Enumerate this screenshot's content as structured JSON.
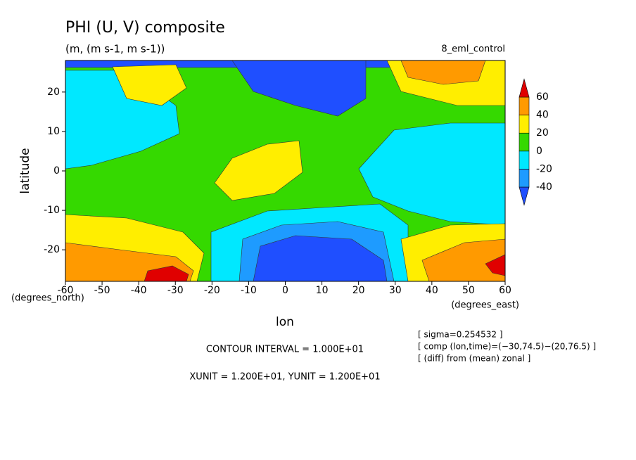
{
  "chart_data": {
    "type": "contour",
    "title": "PHI (U, V) composite",
    "subtitle": "(m, (m s-1, m s-1))",
    "dataset": "8_eml_control",
    "xlabel": "lon",
    "ylabel": "latitude",
    "xunits": "(degrees_east)",
    "yunits": "(degrees_north)",
    "xlim": [
      -60,
      60
    ],
    "ylim": [
      -28,
      28
    ],
    "xticks": [
      -60,
      -50,
      -40,
      -30,
      -20,
      -10,
      0,
      10,
      20,
      30,
      40,
      50,
      60
    ],
    "yticks": [
      -20,
      -10,
      0,
      10,
      20
    ],
    "colorbar": {
      "levels": [
        -40,
        -20,
        0,
        20,
        40,
        60
      ],
      "colors": [
        "#1f4fff",
        "#1e9bff",
        "#00e8ff",
        "#35d900",
        "#ffee00",
        "#ff9a00",
        "#e00000"
      ]
    },
    "notes": [
      "CONTOUR INTERVAL = 1.000E+01",
      "XUNIT = 1.200E+01, YUNIT = 1.200E+01"
    ],
    "info": [
      "[ sigma=0.254532 ]",
      "[ comp (lon,time)=(−30,74.5)−(20,76.5) ]",
      "[ (diff) from (mean) zonal ]"
    ]
  }
}
